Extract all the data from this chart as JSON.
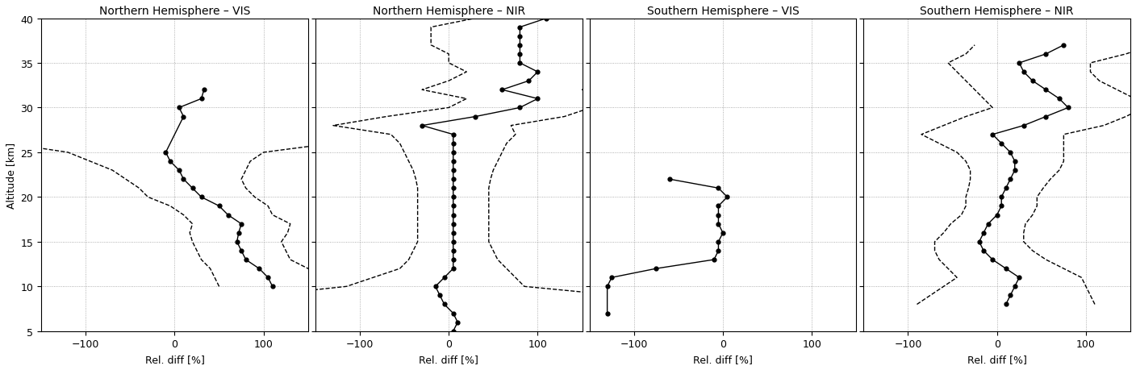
{
  "titles": [
    "Northern Hemisphere – VIS",
    "Northern Hemisphere – NIR",
    "Southern Hemisphere – VIS",
    "Southern Hemisphere – NIR"
  ],
  "xlabel": "Rel. diff [%]",
  "ylabel": "Altitude [km]",
  "ylim": [
    5,
    40
  ],
  "xlim": [
    -150,
    150
  ],
  "xticks": [
    -100,
    0,
    100
  ],
  "yticks": [
    5,
    10,
    15,
    20,
    25,
    30,
    35,
    40
  ],
  "NH_VIS_alt": [
    10,
    11,
    12,
    13,
    14,
    15,
    16,
    17,
    18,
    19,
    20,
    21,
    22,
    23,
    24,
    25,
    29,
    30,
    31,
    32
  ],
  "NH_VIS_mean": [
    110,
    105,
    95,
    80,
    75,
    70,
    72,
    75,
    60,
    50,
    30,
    20,
    10,
    5,
    -5,
    -10,
    10,
    5,
    30,
    33
  ],
  "NH_VIS_std": [
    60,
    60,
    55,
    50,
    50,
    50,
    55,
    55,
    50,
    55,
    60,
    60,
    65,
    75,
    90,
    110,
    400,
    400,
    400,
    400
  ],
  "NH_NIR_alt": [
    5,
    6,
    7,
    8,
    9,
    10,
    11,
    12,
    13,
    14,
    15,
    16,
    17,
    18,
    19,
    20,
    21,
    22,
    23,
    24,
    25,
    26,
    27,
    28,
    29,
    30,
    31,
    32,
    33,
    34,
    35,
    36,
    37,
    38,
    39,
    40
  ],
  "NH_NIR_mean": [
    5,
    10,
    5,
    -5,
    -10,
    -15,
    -5,
    5,
    5,
    5,
    5,
    5,
    5,
    5,
    5,
    5,
    5,
    5,
    5,
    5,
    5,
    5,
    5,
    -30,
    30,
    80,
    100,
    60,
    90,
    100,
    80,
    80,
    80,
    80,
    80,
    110
  ],
  "NH_NIR_std": [
    400,
    400,
    400,
    300,
    200,
    100,
    80,
    60,
    50,
    45,
    40,
    40,
    40,
    40,
    40,
    40,
    40,
    42,
    45,
    50,
    55,
    60,
    70,
    100,
    100,
    80,
    80,
    90,
    90,
    80,
    80,
    80,
    100,
    100,
    100,
    80
  ],
  "SH_VIS_alt": [
    7,
    10,
    11,
    12,
    13,
    14,
    15,
    16,
    17,
    18,
    19,
    20,
    21,
    22
  ],
  "SH_VIS_mean": [
    -130,
    -130,
    -125,
    -75,
    -10,
    -5,
    -5,
    0,
    -5,
    -5,
    -5,
    5,
    -5,
    -60
  ],
  "SH_VIS_std": [
    400,
    400,
    400,
    400,
    400,
    400,
    400,
    400,
    400,
    400,
    400,
    400,
    400,
    400
  ],
  "SH_NIR_alt": [
    8,
    9,
    10,
    11,
    12,
    13,
    14,
    15,
    16,
    17,
    18,
    19,
    20,
    21,
    22,
    23,
    24,
    25,
    26,
    27,
    28,
    29,
    30,
    31,
    32,
    33,
    34,
    35,
    36,
    37
  ],
  "SH_NIR_mean": [
    10,
    15,
    20,
    25,
    10,
    -5,
    -15,
    -20,
    -15,
    -10,
    0,
    5,
    5,
    10,
    15,
    20,
    20,
    15,
    5,
    -5,
    30,
    55,
    80,
    70,
    55,
    40,
    30,
    25,
    55,
    75
  ],
  "SH_NIR_std": [
    100,
    90,
    80,
    70,
    65,
    60,
    55,
    50,
    45,
    42,
    40,
    40,
    40,
    42,
    45,
    50,
    55,
    60,
    70,
    80,
    90,
    90,
    85,
    85,
    80,
    75,
    75,
    80,
    90,
    100
  ]
}
